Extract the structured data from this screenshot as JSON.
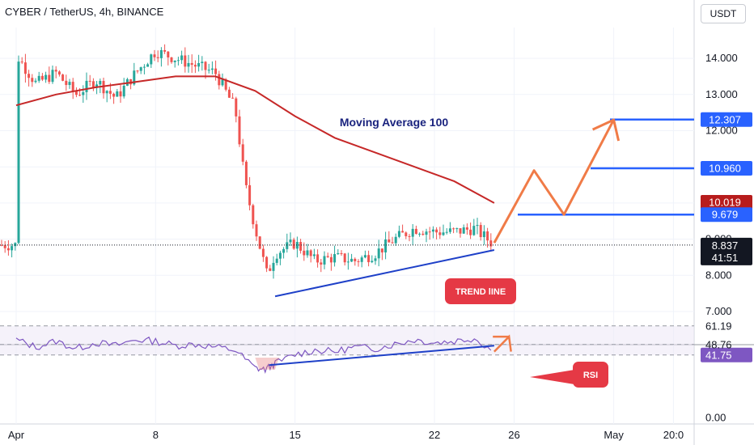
{
  "header": {
    "symbol_title": "CYBER / TetherUS, 4h, BINANCE",
    "unit_button": "USDT"
  },
  "chart_data": [
    {
      "type": "candlestick",
      "title": "CYBER / TetherUS, 4h, BINANCE",
      "ylim": [
        6.1,
        15.7
      ],
      "y_ticks": [
        7.0,
        8.0,
        9.0,
        10.0,
        11.0,
        12.0,
        13.0,
        14.0
      ],
      "y_tick_labels": [
        "7.000",
        "8.000",
        "9.000",
        "10.000",
        "11.000",
        "12.000",
        "13.000",
        "14.000"
      ],
      "x_ticks": [
        {
          "label": "Apr",
          "x": "Apr 1"
        },
        {
          "label": "8",
          "x": "Apr 8"
        },
        {
          "label": "15",
          "x": "Apr 15"
        },
        {
          "label": "22",
          "x": "Apr 22"
        },
        {
          "label": "26",
          "x": "Apr 26"
        },
        {
          "label": "May",
          "x": "May 1"
        },
        {
          "label": "20:0",
          "x": "May 4"
        }
      ],
      "up_color": "#26a69a",
      "down_color": "#ef5350",
      "last_price": {
        "value": 8.837,
        "label": "8.837",
        "countdown": "41:51"
      },
      "price_path": [
        [
          "Apr 1",
          14.1
        ],
        [
          "Apr 2",
          13.3
        ],
        [
          "Apr 3",
          13.6
        ],
        [
          "Apr 4",
          13.0
        ],
        [
          "Apr 5",
          13.4
        ],
        [
          "Apr 6",
          12.9
        ],
        [
          "Apr 7",
          13.6
        ],
        [
          "Apr 8",
          14.2
        ],
        [
          "Apr 9",
          14.0
        ],
        [
          "Apr 10",
          13.8
        ],
        [
          "Apr 11",
          13.6
        ],
        [
          "Apr 12",
          12.6
        ],
        [
          "Apr 12.5",
          10.5
        ],
        [
          "Apr 13",
          9.3
        ],
        [
          "Apr 13.6",
          8.0
        ],
        [
          "Apr 14",
          8.6
        ],
        [
          "Apr 15",
          8.9
        ],
        [
          "Apr 16",
          8.4
        ],
        [
          "Apr 17",
          8.5
        ],
        [
          "Apr 18",
          8.4
        ],
        [
          "Apr 19",
          8.6
        ],
        [
          "Apr 20",
          9.0
        ],
        [
          "Apr 21",
          9.3
        ],
        [
          "Apr 22",
          9.2
        ],
        [
          "Apr 23",
          9.2
        ],
        [
          "Apr 24",
          9.3
        ],
        [
          "Apr 25",
          8.84
        ]
      ],
      "moving_average": {
        "label": "Moving Average 100",
        "color": "#c62828",
        "points": [
          [
            "Apr 1",
            12.7
          ],
          [
            "Apr 3",
            13.0
          ],
          [
            "Apr 5",
            13.2
          ],
          [
            "Apr 7",
            13.35
          ],
          [
            "Apr 9",
            13.5
          ],
          [
            "Apr 11",
            13.5
          ],
          [
            "Apr 13",
            13.1
          ],
          [
            "Apr 15",
            12.4
          ],
          [
            "Apr 17",
            11.8
          ],
          [
            "Apr 19",
            11.4
          ],
          [
            "Apr 21",
            11.0
          ],
          [
            "Apr 23",
            10.6
          ],
          [
            "Apr 25",
            10.0
          ]
        ]
      },
      "levels": [
        {
          "value": 12.307,
          "label": "12.307",
          "color": "#2962ff"
        },
        {
          "value": 10.96,
          "label": "10.960",
          "color": "#2962ff"
        },
        {
          "value": 10.019,
          "label": "10.019",
          "color": "#b71c1c"
        },
        {
          "value": 9.679,
          "label": "9.679",
          "color": "#2962ff"
        }
      ],
      "trend_line": {
        "from": [
          "Apr 14",
          7.42
        ],
        "to": [
          "Apr 25",
          8.7
        ],
        "color": "#1e40c8"
      },
      "projection_path": [
        [
          "Apr 25",
          8.9
        ],
        [
          "Apr 27",
          10.9
        ],
        [
          "Apr 28.5",
          9.68
        ],
        [
          "Apr 31",
          12.3
        ]
      ],
      "annotations": {
        "ma_label": "Moving Average 100",
        "trend_label": "TREND lINE"
      }
    },
    {
      "type": "line",
      "series": [
        {
          "name": "RSI",
          "color": "#7e57c2"
        }
      ],
      "ylim": [
        0,
        100
      ],
      "y_ticks": [
        0.0,
        41.75,
        48.76,
        61.19
      ],
      "y_tick_labels": [
        "0.00",
        "41.75",
        "48.76",
        "61.19"
      ],
      "bands": [
        61.19,
        48.76,
        41.75
      ],
      "current": {
        "value": 41.75,
        "label": "41.75"
      },
      "rsi_path": [
        [
          "Apr 1",
          52
        ],
        [
          "Apr 2",
          47
        ],
        [
          "Apr 3",
          51
        ],
        [
          "Apr 4",
          46
        ],
        [
          "Apr 5",
          50
        ],
        [
          "Apr 6",
          48
        ],
        [
          "Apr 7",
          52
        ],
        [
          "Apr 8",
          51
        ],
        [
          "Apr 9",
          48
        ],
        [
          "Apr 10",
          49
        ],
        [
          "Apr 11",
          47
        ],
        [
          "Apr 12",
          45
        ],
        [
          "Apr 13",
          33
        ],
        [
          "Apr 13.5",
          32
        ],
        [
          "Apr 14",
          36
        ],
        [
          "Apr 15",
          42
        ],
        [
          "Apr 16",
          45
        ],
        [
          "Apr 17",
          44
        ],
        [
          "Apr 18",
          47
        ],
        [
          "Apr 19",
          46
        ],
        [
          "Apr 20",
          49
        ],
        [
          "Apr 21",
          52
        ],
        [
          "Apr 22",
          50
        ],
        [
          "Apr 23",
          51
        ],
        [
          "Apr 24",
          53
        ],
        [
          "Apr 25",
          44
        ]
      ],
      "trend_line": {
        "from": [
          "Apr 13.7",
          35
        ],
        "to": [
          "Apr 25",
          48
        ]
      },
      "arrow": [
        [
          "Apr 25",
          44
        ],
        [
          "Apr 25.5",
          54
        ],
        [
          "Apr 25.6",
          44
        ]
      ],
      "annotations": {
        "rsi_label": "RSI"
      }
    }
  ]
}
